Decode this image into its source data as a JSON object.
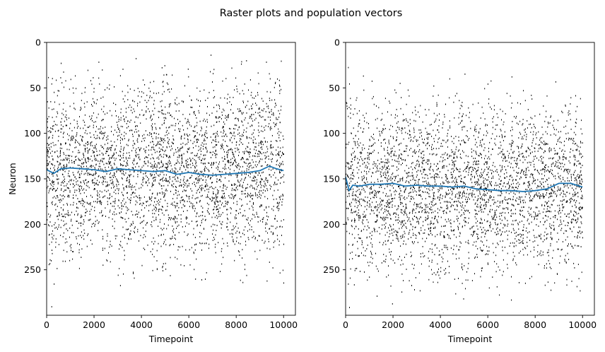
{
  "figure": {
    "title": "Raster plots and population vectors"
  },
  "chart_data": [
    {
      "type": "scatter",
      "subtype": "raster-with-line",
      "xlabel": "Timepoint",
      "ylabel": "Neuron",
      "xlim": [
        0,
        10500
      ],
      "ylim": [
        300,
        0
      ],
      "y_inverted": true,
      "xticks": [
        "0",
        "2000",
        "4000",
        "6000",
        "8000",
        "10000"
      ],
      "yticks": [
        "0",
        "50",
        "100",
        "150",
        "200",
        "250"
      ],
      "raster": {
        "color": "#000000",
        "x_range": [
          0,
          10000
        ],
        "active_neuron_range": [
          68,
          215
        ],
        "sparse_outliers": [
          [
            200,
            45
          ],
          [
            3100,
            36
          ],
          [
            300,
            265
          ],
          [
            200,
            290
          ],
          [
            3050,
            248
          ],
          [
            9800,
            222
          ]
        ]
      },
      "series": [
        {
          "color": "#1f77b4",
          "x": [
            0,
            300,
            600,
            1000,
            1500,
            2000,
            2500,
            3000,
            3500,
            4000,
            4500,
            5000,
            5500,
            6000,
            6500,
            7000,
            7500,
            8000,
            8500,
            9000,
            9400,
            9700,
            10000
          ],
          "y": [
            140,
            144,
            139,
            138,
            139,
            140,
            142,
            139,
            140,
            141,
            142,
            141,
            145,
            143,
            145,
            146,
            145,
            144,
            143,
            141,
            136,
            139,
            141
          ]
        }
      ]
    },
    {
      "type": "scatter",
      "subtype": "raster-with-line",
      "xlabel": "Timepoint",
      "ylabel": "",
      "xlim": [
        0,
        10500
      ],
      "ylim": [
        300,
        0
      ],
      "y_inverted": true,
      "xticks": [
        "0",
        "2000",
        "4000",
        "6000",
        "8000",
        "10000"
      ],
      "yticks": [
        "0",
        "50",
        "100",
        "150",
        "200",
        "250"
      ],
      "raster": {
        "color": "#000000",
        "x_range": [
          0,
          10000
        ],
        "active_neuron_range": [
          90,
          232
        ],
        "sparse_outliers": [
          [
            100,
            27
          ],
          [
            150,
            45
          ],
          [
            1100,
            42
          ],
          [
            100,
            265
          ],
          [
            3100,
            253
          ],
          [
            9400,
            238
          ]
        ]
      },
      "series": [
        {
          "color": "#1f77b4",
          "x": [
            0,
            150,
            300,
            600,
            1000,
            1500,
            2000,
            2500,
            3000,
            3500,
            4000,
            4500,
            5000,
            5500,
            6000,
            6500,
            7000,
            7500,
            8000,
            8500,
            9000,
            9500,
            10000
          ],
          "y": [
            148,
            163,
            157,
            158,
            156,
            156,
            155,
            158,
            157,
            158,
            158,
            159,
            158,
            161,
            162,
            163,
            163,
            164,
            163,
            161,
            155,
            155,
            159
          ]
        }
      ]
    }
  ]
}
